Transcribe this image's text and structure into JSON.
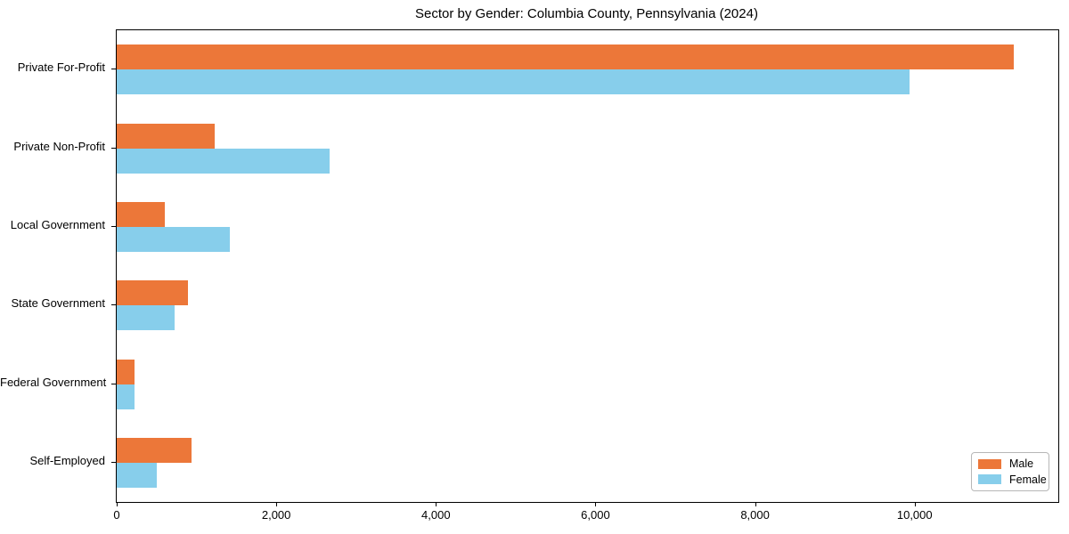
{
  "title": "Sector by Gender: Columbia County, Pennsylvania (2024)",
  "chart_data": {
    "type": "bar",
    "orientation": "horizontal",
    "title": "Sector by Gender: Columbia County, Pennsylvania (2024)",
    "xlabel": "",
    "ylabel": "",
    "grid": false,
    "legend_position": "lower right",
    "categories": [
      "Private For-Profit",
      "Private Non-Profit",
      "Local Government",
      "State Government",
      "Federal Government",
      "Self-Employed"
    ],
    "series": [
      {
        "name": "Male",
        "color": "#EC7739",
        "values": [
          11240,
          1230,
          600,
          890,
          220,
          940
        ]
      },
      {
        "name": "Female",
        "color": "#87CEEB",
        "values": [
          9935,
          2665,
          1420,
          725,
          225,
          505
        ]
      }
    ],
    "xlim": [
      0,
      11800
    ],
    "xticks": [
      0,
      2000,
      4000,
      6000,
      8000,
      10000
    ],
    "xtick_labels": [
      "0",
      "2,000",
      "4,000",
      "6,000",
      "8,000",
      "10,000"
    ]
  }
}
